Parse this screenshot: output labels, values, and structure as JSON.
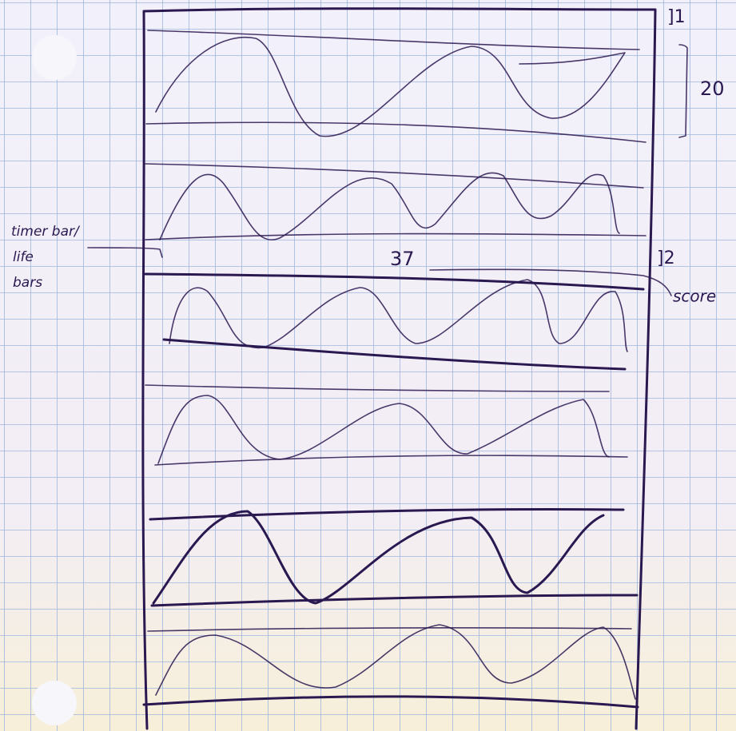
{
  "sketch": {
    "score": "37",
    "annotations": {
      "lane_marker_1": "]1",
      "height_note": "20",
      "timer_label": [
        "timer bar/",
        "life",
        "bars"
      ],
      "lane_marker_2": "]2",
      "score_label": "score"
    }
  }
}
